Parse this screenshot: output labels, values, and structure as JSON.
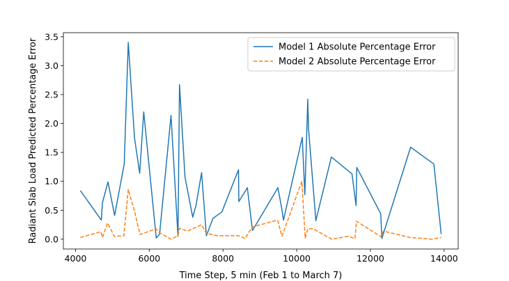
{
  "chart_data": {
    "type": "line",
    "title": "",
    "xlabel": "Time Step, 5 min (Feb 1 to March 7)",
    "ylabel": "Radiant Slab Load Predicted Percentage Error",
    "xlim": [
      3670,
      14380
    ],
    "ylim": [
      -0.17,
      3.57
    ],
    "xticks": [
      4000,
      6000,
      8000,
      10000,
      12000,
      14000
    ],
    "yticks": [
      0.0,
      0.5,
      1.0,
      1.5,
      2.0,
      2.5,
      3.0,
      3.5
    ],
    "xtick_labels": [
      "4000",
      "6000",
      "8000",
      "10000",
      "12000",
      "14000"
    ],
    "ytick_labels": [
      "0.0",
      "0.5",
      "1.0",
      "1.5",
      "2.0",
      "2.5",
      "3.0",
      "3.5"
    ],
    "grid": false,
    "legend_position": "top-right",
    "series": [
      {
        "name": "Model 1 Absolute Percentage Error",
        "color": "#1f77b4",
        "style": "solid",
        "x": [
          4130,
          4700,
          4730,
          4880,
          5060,
          5320,
          5430,
          5600,
          5740,
          5850,
          6190,
          6280,
          6590,
          6780,
          6820,
          6970,
          7180,
          7270,
          7420,
          7550,
          7730,
          7970,
          8420,
          8430,
          8660,
          8800,
          9490,
          9600,
          9640,
          10150,
          10220,
          10300,
          10320,
          10520,
          10940,
          11500,
          11610,
          11630,
          12280,
          12310,
          13090,
          13720,
          13920
        ],
        "y": [
          0.84,
          0.33,
          0.63,
          0.99,
          0.41,
          1.3,
          3.4,
          1.75,
          1.14,
          2.2,
          0.02,
          0.09,
          2.14,
          0.05,
          2.67,
          1.07,
          0.38,
          0.59,
          1.15,
          0.06,
          0.36,
          0.47,
          1.2,
          0.65,
          0.89,
          0.15,
          0.89,
          0.51,
          0.33,
          1.76,
          0.77,
          2.42,
          1.91,
          0.32,
          1.42,
          1.13,
          0.58,
          1.24,
          0.44,
          0.01,
          1.59,
          1.3,
          0.09
        ]
      },
      {
        "name": "Model 2 Absolute Percentage Error",
        "color": "#ff7f0e",
        "style": "dashed",
        "x": [
          4130,
          4690,
          4730,
          4870,
          5050,
          5310,
          5430,
          5600,
          5750,
          6180,
          6280,
          6590,
          6780,
          6820,
          7040,
          7420,
          7550,
          7850,
          8420,
          8600,
          8790,
          9480,
          9600,
          10140,
          10230,
          10300,
          10450,
          10950,
          11400,
          11580,
          11620,
          12290,
          12350,
          13070,
          13680,
          13920
        ],
        "y": [
          0.03,
          0.13,
          0.03,
          0.28,
          0.05,
          0.06,
          0.86,
          0.48,
          0.08,
          0.18,
          0.11,
          0.0,
          0.06,
          0.19,
          0.14,
          0.25,
          0.1,
          0.06,
          0.06,
          0.01,
          0.21,
          0.33,
          0.05,
          1.0,
          0.02,
          0.18,
          0.18,
          0.0,
          0.05,
          0.01,
          0.31,
          0.04,
          0.14,
          0.03,
          0.0,
          0.03
        ]
      }
    ]
  }
}
